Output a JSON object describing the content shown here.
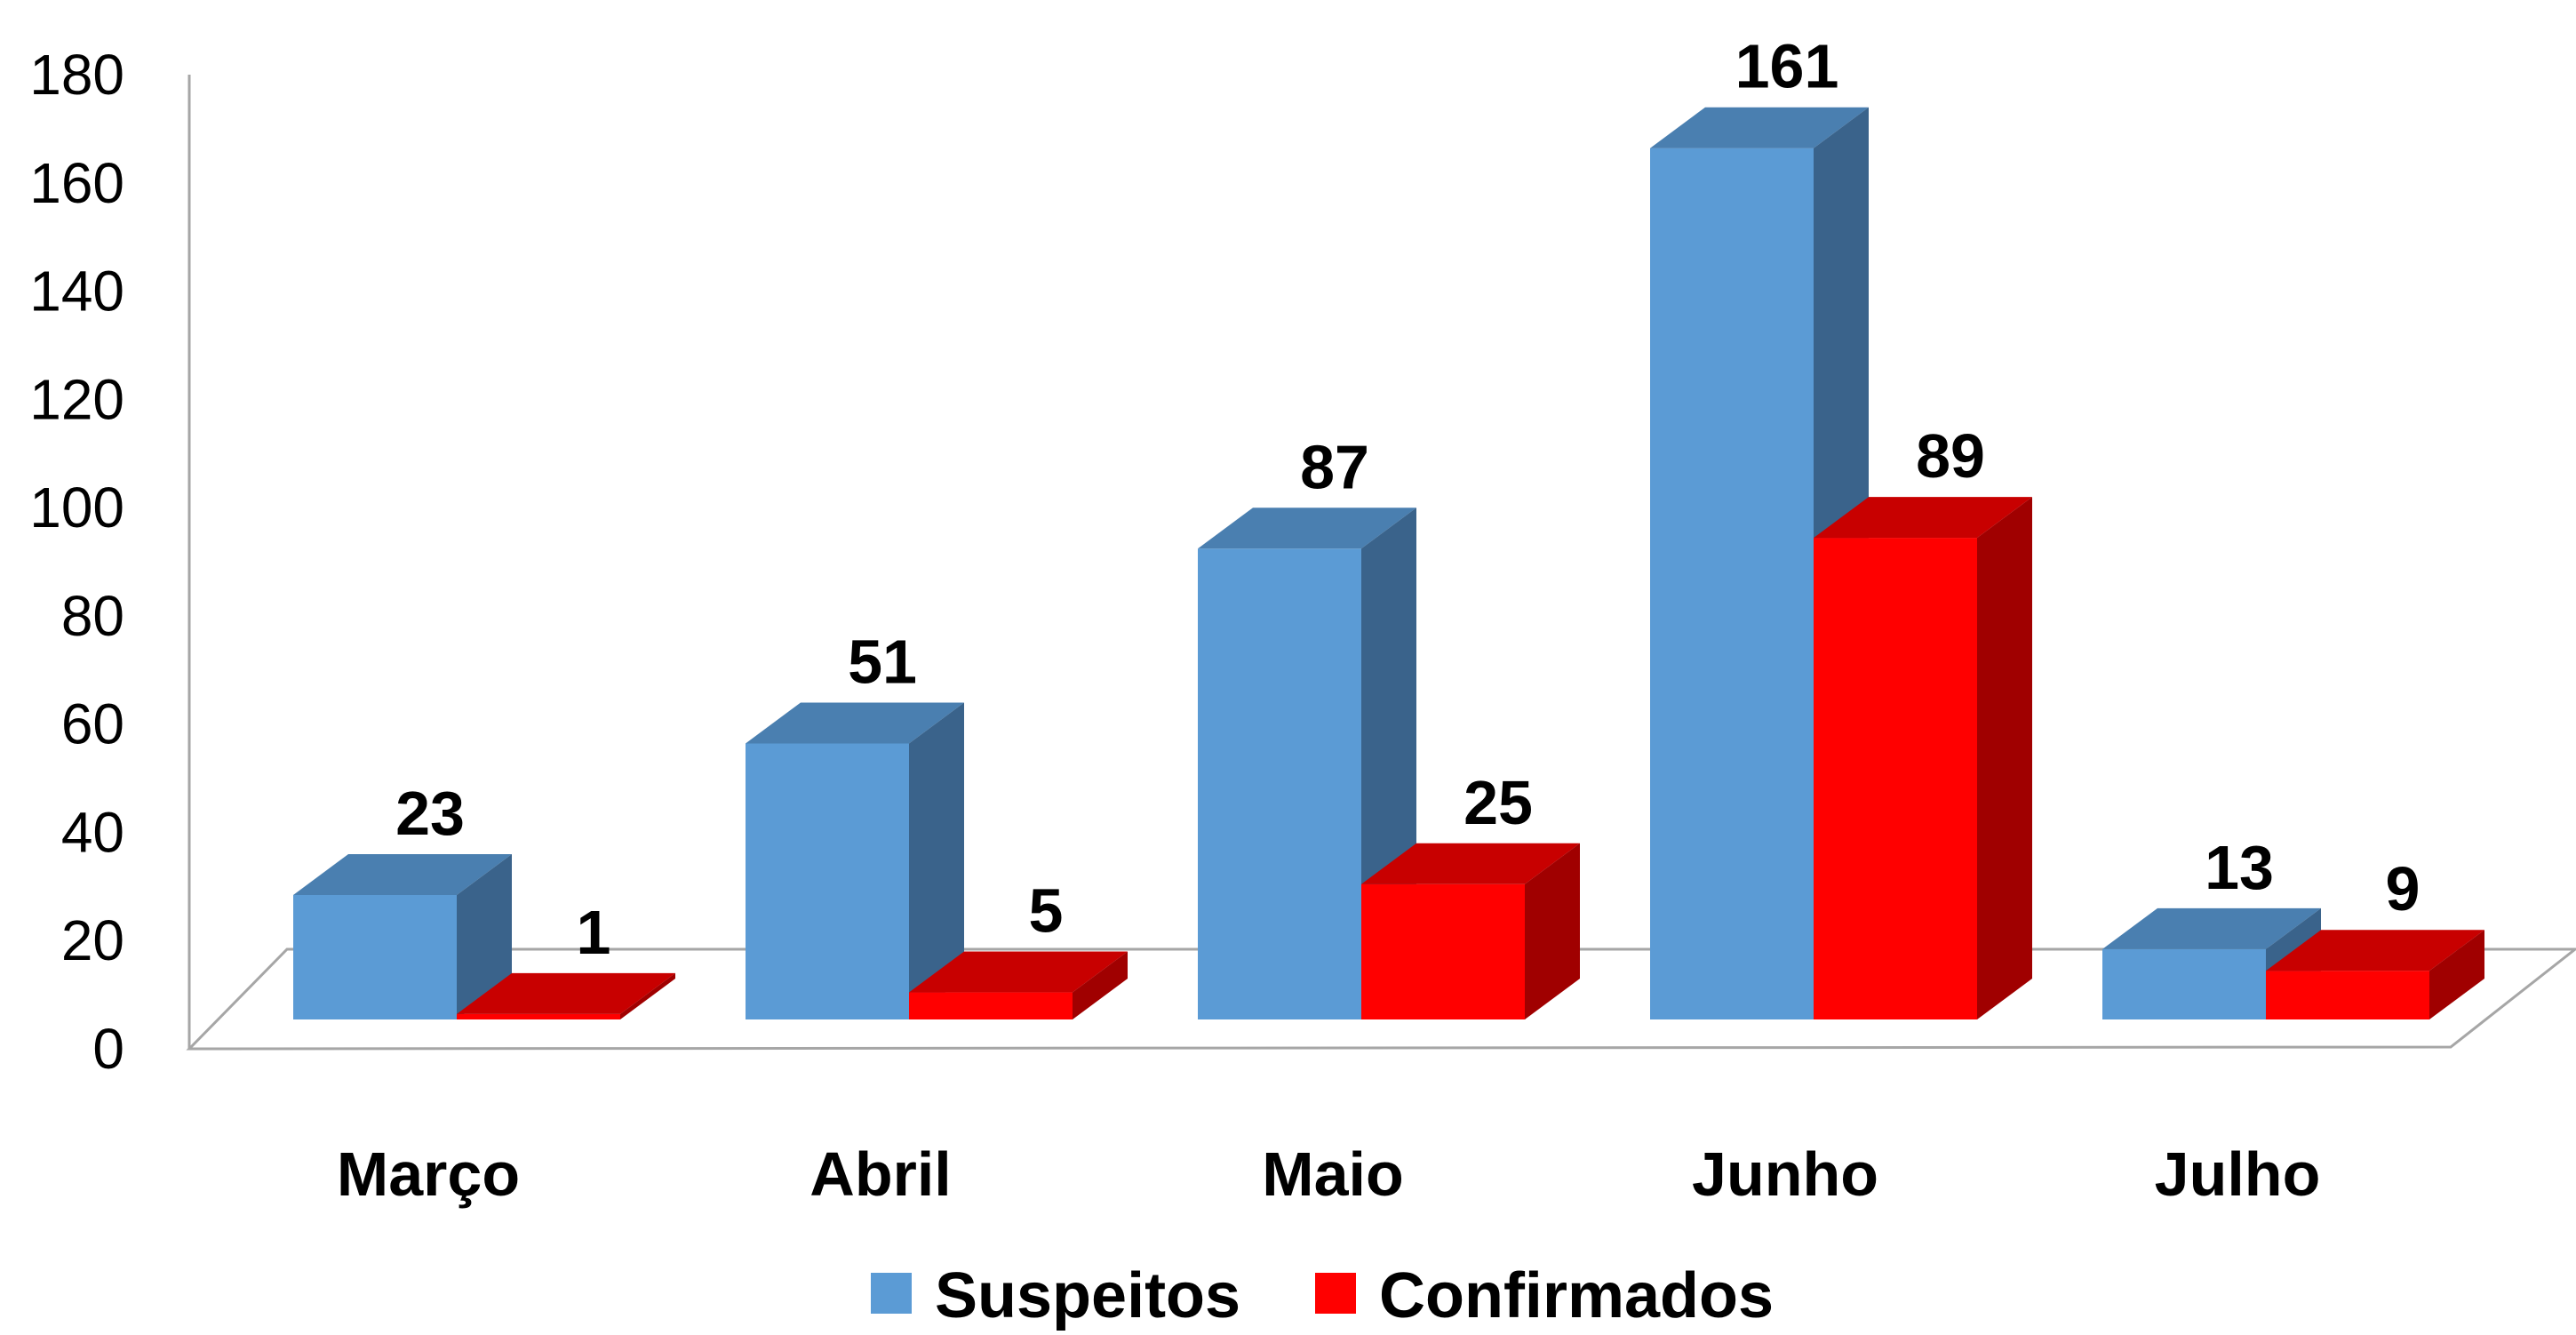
{
  "chart_data": {
    "type": "bar",
    "categories": [
      "Março",
      "Abril",
      "Maio",
      "Junho",
      "Julho"
    ],
    "series": [
      {
        "name": "Suspeitos",
        "values": [
          23,
          51,
          87,
          161,
          13
        ],
        "color": "#5b9bd5",
        "side_color": "#3a638b",
        "top_color": "#4a7fb0"
      },
      {
        "name": "Confirmados",
        "values": [
          1,
          5,
          25,
          89,
          9
        ],
        "color": "#ff0000",
        "side_color": "#a00000",
        "top_color": "#c80000"
      }
    ],
    "ylim": [
      0,
      180
    ],
    "yticks": [
      "0",
      "20",
      "40",
      "60",
      "80",
      "100",
      "120",
      "140",
      "160",
      "180"
    ],
    "legend_position": "bottom",
    "style": "3d-clustered-column",
    "grid": false
  }
}
